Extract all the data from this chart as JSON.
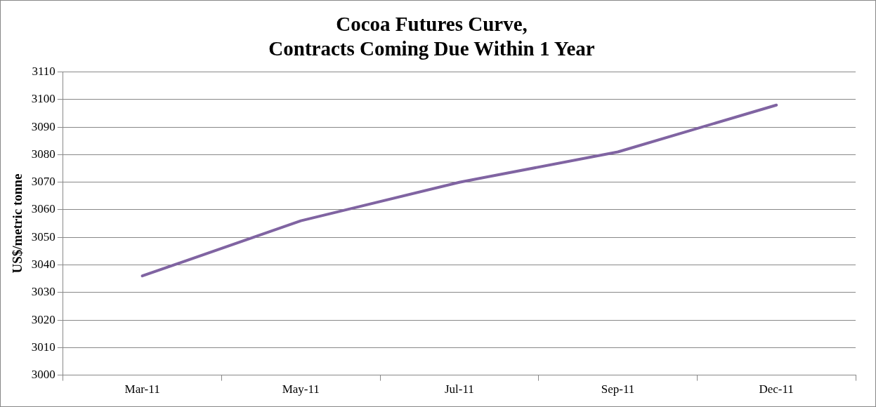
{
  "chart_data": {
    "type": "line",
    "title": "Cocoa Futures Curve,\nContracts Coming Due Within 1 Year",
    "ylabel": "US$/metric tonne",
    "categories": [
      "Mar-11",
      "May-11",
      "Jul-11",
      "Sep-11",
      "Dec-11"
    ],
    "series": [
      {
        "color": "#8064a2",
        "values": [
          3036,
          3056,
          3070,
          3081,
          3098
        ]
      }
    ],
    "ylim": [
      3000,
      3110
    ],
    "yticks": [
      3000,
      3010,
      3020,
      3030,
      3040,
      3050,
      3060,
      3070,
      3080,
      3090,
      3100,
      3110
    ],
    "grid": "y",
    "legend": false,
    "marker": "none",
    "line_style": "solid"
  }
}
